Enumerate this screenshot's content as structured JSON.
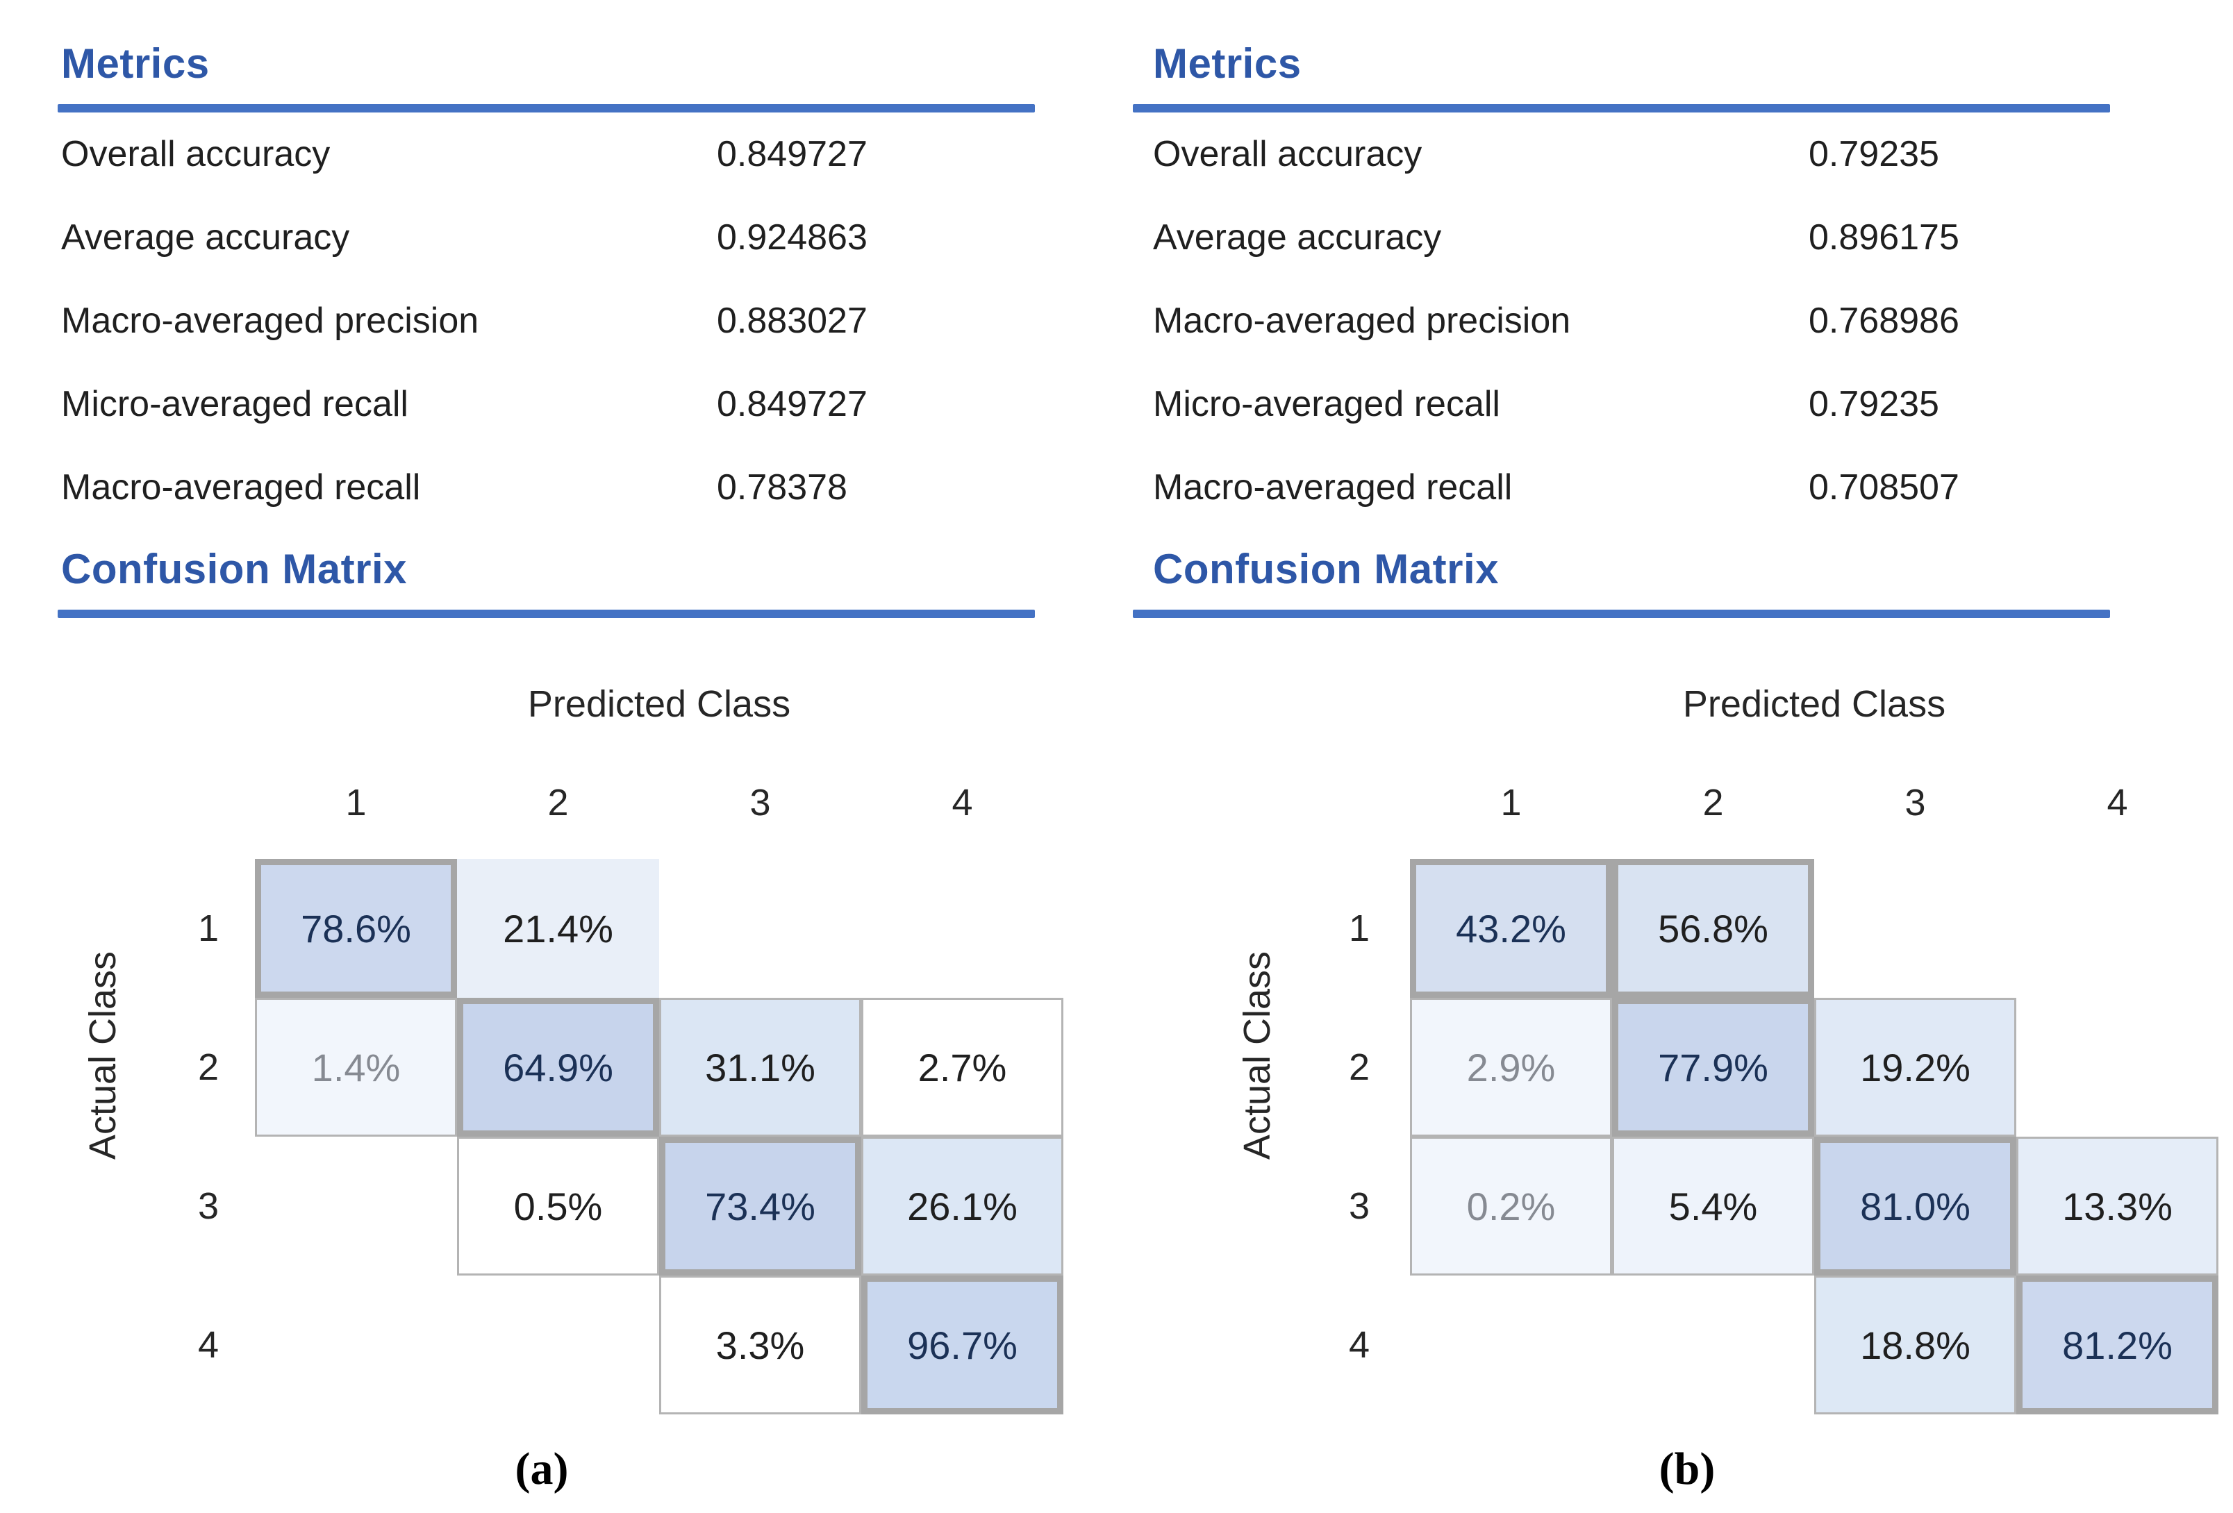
{
  "figure": {
    "panels": [
      {
        "id": "a",
        "caption": "(a)",
        "metrics_title": "Metrics",
        "confusion_title": "Confusion Matrix",
        "metrics": [
          {
            "label": "Overall accuracy",
            "value": "0.849727"
          },
          {
            "label": "Average accuracy",
            "value": "0.924863"
          },
          {
            "label": "Macro-averaged precision",
            "value": "0.883027"
          },
          {
            "label": "Micro-averaged recall",
            "value": "0.849727"
          },
          {
            "label": "Macro-averaged recall",
            "value": "0.78378"
          }
        ],
        "matrix": {
          "x_title": "Predicted Class",
          "y_title": "Actual Class",
          "col_headers": [
            "1",
            "2",
            "3",
            "4"
          ],
          "row_headers": [
            "1",
            "2",
            "3",
            "4"
          ],
          "cells": [
            {
              "row": 1,
              "col": 1,
              "text": "78.6%",
              "fill": "#ccd8ee",
              "border": "thick",
              "tone": "navy"
            },
            {
              "row": 1,
              "col": 2,
              "text": "21.4%",
              "fill": "#e9eff8",
              "border": "none",
              "tone": "black"
            },
            {
              "row": 2,
              "col": 1,
              "text": "1.4%",
              "fill": "#f2f6fc",
              "border": "thin",
              "tone": "gray"
            },
            {
              "row": 2,
              "col": 2,
              "text": "64.9%",
              "fill": "#c7d4ec",
              "border": "thick",
              "tone": "navy"
            },
            {
              "row": 2,
              "col": 3,
              "text": "31.1%",
              "fill": "#dbe6f4",
              "border": "thin",
              "tone": "black"
            },
            {
              "row": 2,
              "col": 4,
              "text": "2.7%",
              "fill": "#ffffff",
              "border": "thin",
              "tone": "black"
            },
            {
              "row": 3,
              "col": 2,
              "text": "0.5%",
              "fill": "#ffffff",
              "border": "thin",
              "tone": "black"
            },
            {
              "row": 3,
              "col": 3,
              "text": "73.4%",
              "fill": "#c7d4ec",
              "border": "thick",
              "tone": "navy"
            },
            {
              "row": 3,
              "col": 4,
              "text": "26.1%",
              "fill": "#dce7f5",
              "border": "thin",
              "tone": "black"
            },
            {
              "row": 4,
              "col": 3,
              "text": "3.3%",
              "fill": "#ffffff",
              "border": "thin",
              "tone": "black"
            },
            {
              "row": 4,
              "col": 4,
              "text": "96.7%",
              "fill": "#c9d7ee",
              "border": "thick",
              "tone": "navy"
            }
          ]
        }
      },
      {
        "id": "b",
        "caption": "(b)",
        "metrics_title": "Metrics",
        "confusion_title": "Confusion Matrix",
        "metrics": [
          {
            "label": "Overall accuracy",
            "value": "0.79235"
          },
          {
            "label": "Average accuracy",
            "value": "0.896175"
          },
          {
            "label": "Macro-averaged precision",
            "value": "0.768986"
          },
          {
            "label": "Micro-averaged recall",
            "value": "0.79235"
          },
          {
            "label": "Macro-averaged recall",
            "value": "0.708507"
          }
        ],
        "matrix": {
          "x_title": "Predicted Class",
          "y_title": "Actual Class",
          "col_headers": [
            "1",
            "2",
            "3",
            "4"
          ],
          "row_headers": [
            "1",
            "2",
            "3",
            "4"
          ],
          "cells": [
            {
              "row": 1,
              "col": 1,
              "text": "43.2%",
              "fill": "#d5dff0",
              "border": "thick",
              "tone": "navy"
            },
            {
              "row": 1,
              "col": 2,
              "text": "56.8%",
              "fill": "#d9e3f2",
              "border": "thick",
              "tone": "black"
            },
            {
              "row": 2,
              "col": 1,
              "text": "2.9%",
              "fill": "#f2f6fc",
              "border": "thin",
              "tone": "gray"
            },
            {
              "row": 2,
              "col": 2,
              "text": "77.9%",
              "fill": "#c9d6ed",
              "border": "thick",
              "tone": "navy"
            },
            {
              "row": 2,
              "col": 3,
              "text": "19.2%",
              "fill": "#e0e9f6",
              "border": "thin",
              "tone": "black"
            },
            {
              "row": 3,
              "col": 1,
              "text": "0.2%",
              "fill": "#f2f6fc",
              "border": "thin",
              "tone": "gray"
            },
            {
              "row": 3,
              "col": 2,
              "text": "5.4%",
              "fill": "#eef3fb",
              "border": "thin",
              "tone": "black"
            },
            {
              "row": 3,
              "col": 3,
              "text": "81.0%",
              "fill": "#c9d6ed",
              "border": "thick",
              "tone": "navy"
            },
            {
              "row": 3,
              "col": 4,
              "text": "13.3%",
              "fill": "#e5edf8",
              "border": "thin",
              "tone": "black"
            },
            {
              "row": 4,
              "col": 3,
              "text": "18.8%",
              "fill": "#dde8f5",
              "border": "thin",
              "tone": "black"
            },
            {
              "row": 4,
              "col": 4,
              "text": "81.2%",
              "fill": "#ccd8ee",
              "border": "thick",
              "tone": "navy"
            }
          ]
        }
      }
    ],
    "colors": {
      "heading_blue": "#2e57a7",
      "rule_blue": "#4472c4",
      "thick_border": "#a6a6a6",
      "thin_border": "#b4b4b4",
      "cell_text_navy": "#1b3156",
      "cell_text_black": "#1f1f1f",
      "cell_text_gray": "#868a92"
    }
  },
  "chart_data": [
    {
      "type": "heatmap",
      "title": "Confusion Matrix (a)",
      "xlabel": "Predicted Class",
      "ylabel": "Actual Class",
      "x_categories": [
        "1",
        "2",
        "3",
        "4"
      ],
      "y_categories": [
        "1",
        "2",
        "3",
        "4"
      ],
      "values_percent": [
        [
          78.6,
          21.4,
          null,
          null
        ],
        [
          1.4,
          64.9,
          31.1,
          2.7
        ],
        [
          null,
          0.5,
          73.4,
          26.1
        ],
        [
          null,
          null,
          3.3,
          96.7
        ]
      ],
      "metrics": {
        "overall_accuracy": 0.849727,
        "average_accuracy": 0.924863,
        "macro_averaged_precision": 0.883027,
        "micro_averaged_recall": 0.849727,
        "macro_averaged_recall": 0.78378
      },
      "legend_position": "none",
      "grid": false
    },
    {
      "type": "heatmap",
      "title": "Confusion Matrix (b)",
      "xlabel": "Predicted Class",
      "ylabel": "Actual Class",
      "x_categories": [
        "1",
        "2",
        "3",
        "4"
      ],
      "y_categories": [
        "1",
        "2",
        "3",
        "4"
      ],
      "values_percent": [
        [
          43.2,
          56.8,
          null,
          null
        ],
        [
          2.9,
          77.9,
          19.2,
          null
        ],
        [
          0.2,
          5.4,
          81.0,
          13.3
        ],
        [
          null,
          null,
          18.8,
          81.2
        ]
      ],
      "metrics": {
        "overall_accuracy": 0.79235,
        "average_accuracy": 0.896175,
        "macro_averaged_precision": 0.768986,
        "micro_averaged_recall": 0.79235,
        "macro_averaged_recall": 0.708507
      },
      "legend_position": "none",
      "grid": false
    }
  ]
}
